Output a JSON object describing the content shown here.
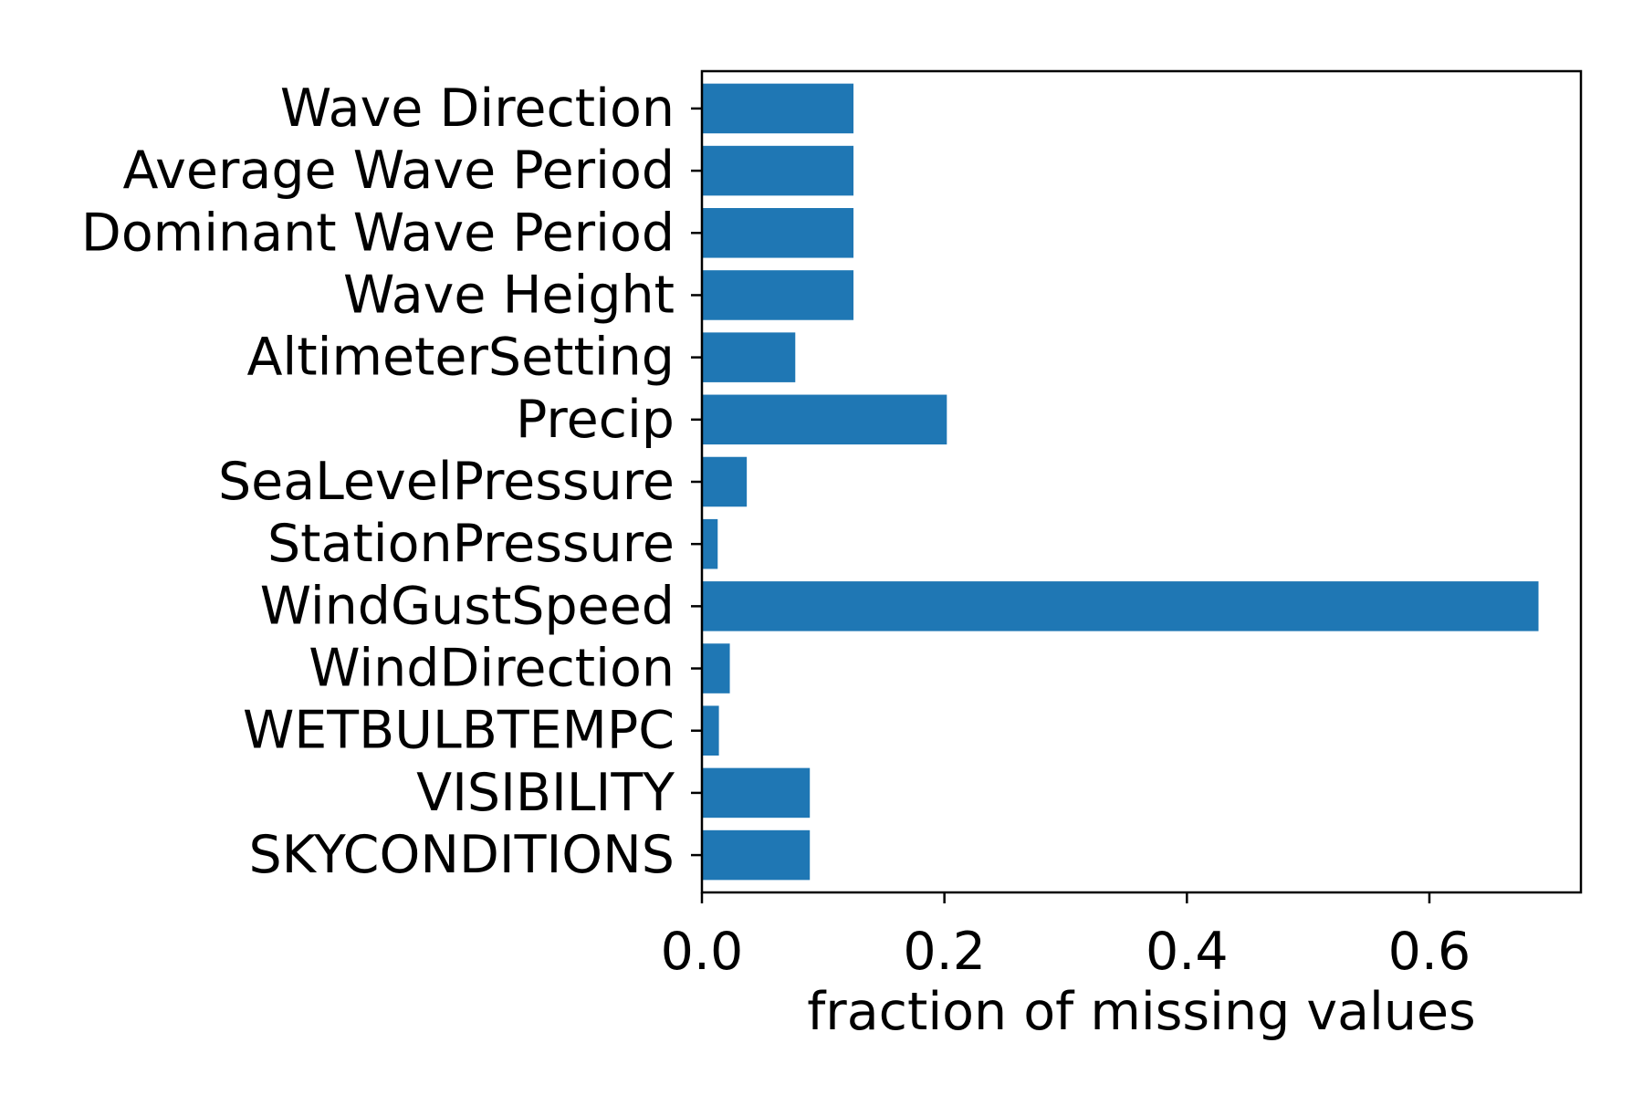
{
  "chart_data": {
    "type": "bar",
    "orientation": "horizontal",
    "categories": [
      "SKYCONDITIONS",
      "VISIBILITY",
      "WETBULBTEMPC",
      "WindDirection",
      "WindGustSpeed",
      "StationPressure",
      "SeaLevelPressure",
      "Precip",
      "AltimeterSetting",
      "Wave Height",
      "Dominant Wave Period",
      "Average Wave Period",
      "Wave Direction"
    ],
    "values": [
      0.089,
      0.089,
      0.014,
      0.023,
      0.69,
      0.013,
      0.037,
      0.202,
      0.077,
      0.125,
      0.125,
      0.125,
      0.125
    ],
    "title": "",
    "xlabel": "fraction of missing values",
    "ylabel": "",
    "xlim": [
      0,
      0.725
    ],
    "xticks": [
      0.0,
      0.2,
      0.4,
      0.6
    ],
    "xtick_labels": [
      "0.0",
      "0.2",
      "0.4",
      "0.6"
    ],
    "bar_color": "#1f77b4",
    "grid": false,
    "legend": "none"
  }
}
